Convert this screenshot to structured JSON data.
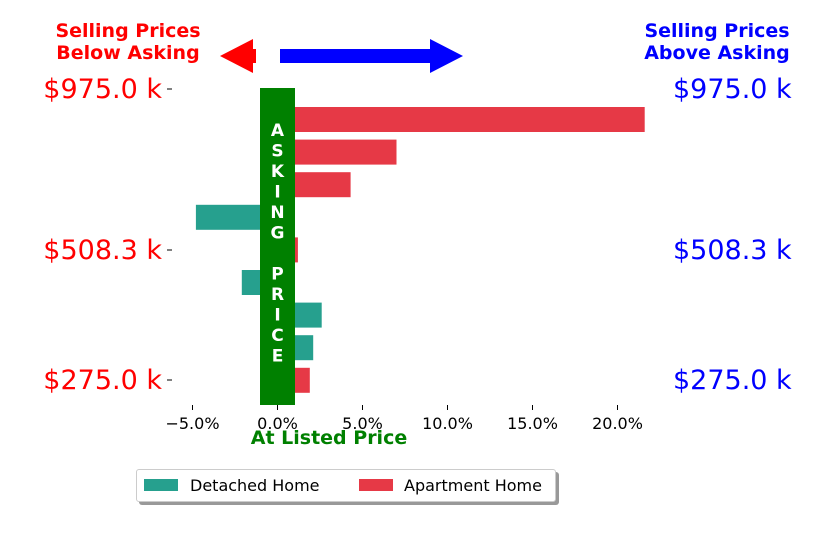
{
  "header": {
    "left_line1": "Selling Prices",
    "left_line2": "Below Asking",
    "right_line1": "Selling Prices",
    "right_line2": "Above Asking",
    "left_color": "#ff0000",
    "right_color": "#0000ff"
  },
  "chart_data": {
    "type": "bar",
    "orientation": "horizontal",
    "xlabel": "At Listed Price",
    "xlim": [
      -0.06,
      0.22
    ],
    "x_ticks": [
      -0.05,
      0.0,
      0.05,
      0.1,
      0.15,
      0.2
    ],
    "x_tick_labels": [
      "−5.0%",
      "0.0%",
      "5.0%",
      "10.0%",
      "15.0%",
      "20.0%"
    ],
    "y_tick_labels_left": [
      "$975.0 k",
      "$508.3 k",
      "$275.0 k"
    ],
    "y_tick_labels_right": [
      "$975.0 k",
      "$508.3 k",
      "$275.0 k"
    ],
    "y_tick_values": [
      975.0,
      508.3,
      275.0
    ],
    "bars": [
      {
        "value": 0.216,
        "series": "Apartment Home"
      },
      {
        "value": 0.07,
        "series": "Apartment Home"
      },
      {
        "value": 0.043,
        "series": "Apartment Home"
      },
      {
        "value": -0.048,
        "series": "Detached Home"
      },
      {
        "value": 0.012,
        "series": "Apartment Home"
      },
      {
        "value": -0.021,
        "series": "Detached Home"
      },
      {
        "value": 0.026,
        "series": "Detached Home"
      },
      {
        "value": 0.021,
        "series": "Detached Home"
      },
      {
        "value": 0.019,
        "series": "Apartment Home"
      }
    ],
    "series": [
      {
        "name": "Detached Home",
        "color": "#26a08e"
      },
      {
        "name": "Apartment Home",
        "color": "#e63946"
      }
    ],
    "asking_band": {
      "label": "ASKING PRICE",
      "letters": [
        "A",
        "S",
        "K",
        "I",
        "N",
        "G",
        "",
        "P",
        "R",
        "I",
        "C",
        "E"
      ],
      "color": "#008000"
    },
    "legend_position": "bottom-center",
    "grid": false
  }
}
